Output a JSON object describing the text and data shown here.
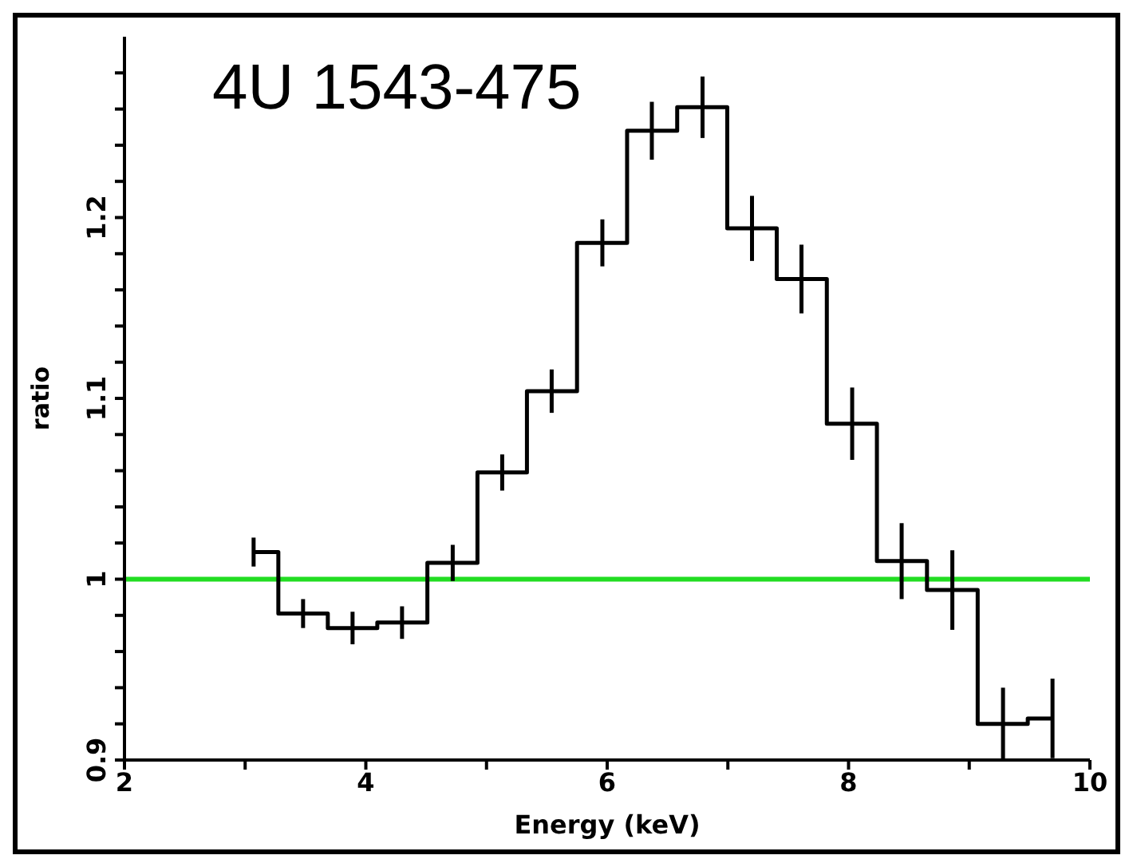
{
  "chart_data": {
    "type": "step",
    "xlabel": "Energy (keV)",
    "ylabel": "ratio",
    "annotations": [
      "4U 1543-475"
    ],
    "x": [
      3.07,
      3.48,
      3.89,
      4.3,
      4.72,
      5.13,
      5.54,
      5.96,
      6.37,
      6.79,
      7.2,
      7.61,
      8.03,
      8.44,
      8.86,
      9.28,
      9.69
    ],
    "series": [
      {
        "color": "#000000",
        "values": [
          1.015,
          0.981,
          0.973,
          0.976,
          1.009,
          1.059,
          1.104,
          1.186,
          1.248,
          1.261,
          1.194,
          1.166,
          1.086,
          1.01,
          0.994,
          0.92,
          0.923
        ],
        "errors": [
          0.008,
          0.008,
          0.009,
          0.009,
          0.01,
          0.01,
          0.012,
          0.013,
          0.016,
          0.017,
          0.018,
          0.019,
          0.02,
          0.021,
          0.022,
          0.02,
          0.022
        ]
      }
    ],
    "xlim": [
      2,
      10
    ],
    "xticks": [
      2,
      {
        "value": 3,
        "label": null
      },
      4,
      {
        "value": 5,
        "label": null
      },
      6,
      {
        "value": 7,
        "label": null
      },
      8,
      {
        "value": 9,
        "label": null
      },
      10
    ],
    "ylim": [
      0.9,
      1.3
    ],
    "yticks": [
      0.9,
      {
        "value": 0.92,
        "label": null
      },
      {
        "value": 0.94,
        "label": null
      },
      {
        "value": 0.96,
        "label": null
      },
      {
        "value": 0.98,
        "label": null
      },
      1,
      {
        "value": 1.02,
        "label": null
      },
      {
        "value": 1.04,
        "label": null
      },
      {
        "value": 1.06,
        "label": null
      },
      {
        "value": 1.08,
        "label": null
      },
      1.1,
      {
        "value": 1.12,
        "label": null
      },
      {
        "value": 1.14,
        "label": null
      },
      {
        "value": 1.16,
        "label": null
      },
      {
        "value": 1.18,
        "label": null
      },
      1.2,
      {
        "value": 1.22,
        "label": null
      },
      {
        "value": 1.24,
        "label": null
      },
      {
        "value": 1.26,
        "label": null
      },
      {
        "value": 1.28,
        "label": null
      }
    ],
    "ref_lines": [
      {
        "axis": "y",
        "value": 1,
        "color": "#22dd22"
      }
    ],
    "grid": false,
    "legend": false,
    "marker": "none",
    "line_style": "solid"
  }
}
